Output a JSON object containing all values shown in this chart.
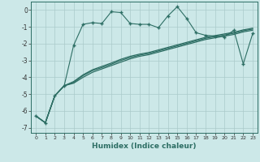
{
  "xlabel": "Humidex (Indice chaleur)",
  "background_color": "#cce8e8",
  "line_color": "#2d6e64",
  "grid_color": "#aacaca",
  "xlim": [
    -0.5,
    23.5
  ],
  "ylim": [
    -7.3,
    0.5
  ],
  "yticks": [
    0,
    -1,
    -2,
    -3,
    -4,
    -5,
    -6,
    -7
  ],
  "xticks": [
    0,
    1,
    2,
    3,
    4,
    5,
    6,
    7,
    8,
    9,
    10,
    11,
    12,
    13,
    14,
    15,
    16,
    17,
    18,
    19,
    20,
    21,
    22,
    23
  ],
  "curve1_x": [
    0,
    1,
    2,
    3,
    4,
    5,
    6,
    7,
    8,
    9,
    10,
    11,
    12,
    13,
    14,
    15,
    16,
    17,
    18,
    19,
    20,
    21,
    22,
    23
  ],
  "curve1_y": [
    -6.3,
    -6.7,
    -5.1,
    -4.5,
    -2.1,
    -0.85,
    -0.75,
    -0.8,
    -0.1,
    -0.15,
    -0.8,
    -0.85,
    -0.85,
    -1.05,
    -0.35,
    0.2,
    -0.5,
    -1.35,
    -1.5,
    -1.55,
    -1.6,
    -1.2,
    -3.2,
    -1.4
  ],
  "curve2_x": [
    0,
    1,
    2,
    3,
    4,
    5,
    6,
    7,
    8,
    9,
    10,
    11,
    12,
    13,
    14,
    15,
    16,
    17,
    18,
    19,
    20,
    21,
    22,
    23
  ],
  "curve2_y": [
    -6.3,
    -6.7,
    -5.1,
    -4.5,
    -4.35,
    -4.0,
    -3.7,
    -3.5,
    -3.3,
    -3.1,
    -2.9,
    -2.75,
    -2.65,
    -2.5,
    -2.35,
    -2.2,
    -2.05,
    -1.9,
    -1.75,
    -1.65,
    -1.55,
    -1.45,
    -1.3,
    -1.2
  ],
  "curve3_x": [
    0,
    1,
    2,
    3,
    4,
    5,
    6,
    7,
    8,
    9,
    10,
    11,
    12,
    13,
    14,
    15,
    16,
    17,
    18,
    19,
    20,
    21,
    22,
    23
  ],
  "curve3_y": [
    -6.3,
    -6.7,
    -5.1,
    -4.5,
    -4.3,
    -3.9,
    -3.6,
    -3.42,
    -3.22,
    -3.0,
    -2.82,
    -2.68,
    -2.58,
    -2.43,
    -2.28,
    -2.13,
    -1.98,
    -1.83,
    -1.68,
    -1.58,
    -1.48,
    -1.38,
    -1.23,
    -1.13
  ],
  "curve4_x": [
    0,
    1,
    2,
    3,
    4,
    5,
    6,
    7,
    8,
    9,
    10,
    11,
    12,
    13,
    14,
    15,
    16,
    17,
    18,
    19,
    20,
    21,
    22,
    23
  ],
  "curve4_y": [
    -6.3,
    -6.7,
    -5.1,
    -4.5,
    -4.25,
    -3.85,
    -3.55,
    -3.35,
    -3.15,
    -2.93,
    -2.75,
    -2.62,
    -2.52,
    -2.37,
    -2.22,
    -2.07,
    -1.92,
    -1.77,
    -1.62,
    -1.52,
    -1.42,
    -1.32,
    -1.18,
    -1.08
  ]
}
